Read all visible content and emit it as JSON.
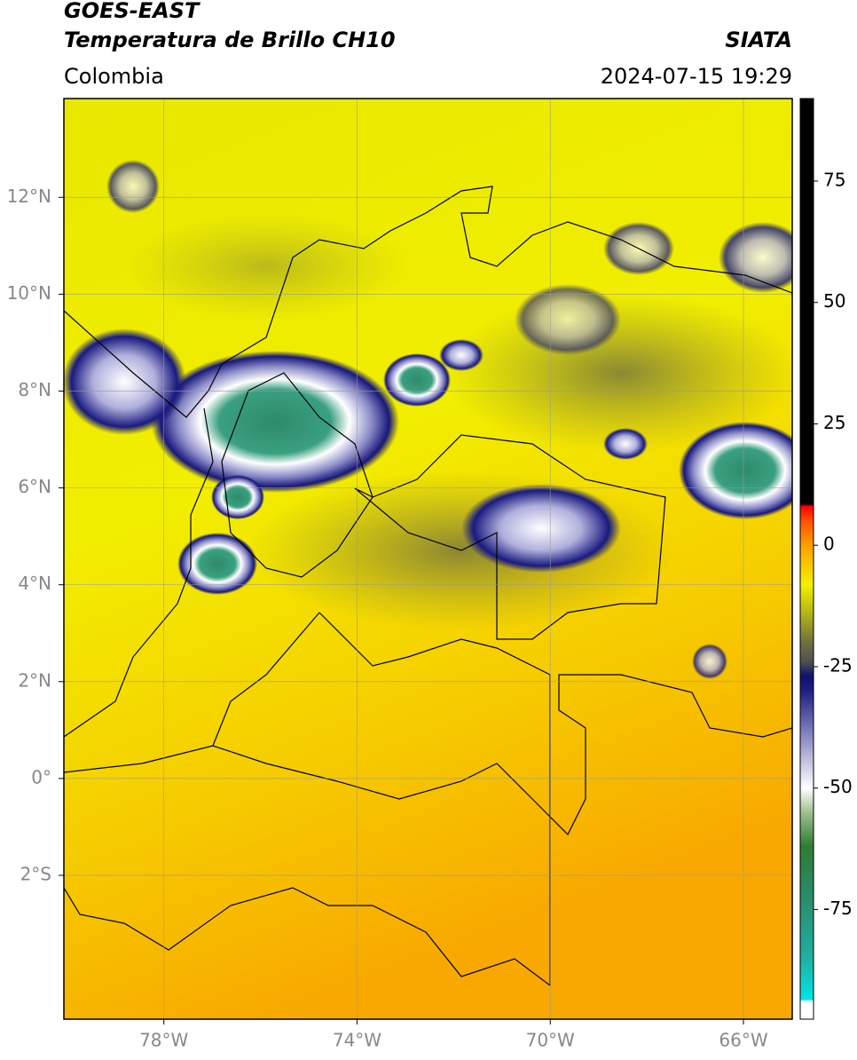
{
  "header": {
    "title_line1": "GOES-EAST",
    "title_line2": "Temperatura de Brillo CH10",
    "region": "Colombia",
    "source": "SIATA",
    "datetime": "2024-07-15 19:29"
  },
  "map": {
    "xlim": [
      -80.07,
      -64.99
    ],
    "ylim": [
      -4.97,
      14.04
    ],
    "xticks": [
      {
        "value": -78,
        "label": "78°W"
      },
      {
        "value": -74,
        "label": "74°W"
      },
      {
        "value": -70,
        "label": "70°W"
      },
      {
        "value": -66,
        "label": "66°W"
      }
    ],
    "yticks": [
      {
        "value": 12,
        "label": "12°N"
      },
      {
        "value": 10,
        "label": "10°N"
      },
      {
        "value": 8,
        "label": "8°N"
      },
      {
        "value": 6,
        "label": "6°N"
      },
      {
        "value": 4,
        "label": "4°N"
      },
      {
        "value": 2,
        "label": "2°N"
      },
      {
        "value": 0,
        "label": "0°"
      },
      {
        "value": -2,
        "label": "2°S"
      }
    ],
    "grid": true
  },
  "colorbar": {
    "lim": [
      -97.6,
      92
    ],
    "ticks": [
      75,
      50,
      25,
      0,
      -25,
      -50,
      -75
    ],
    "stops": [
      {
        "value": -97.6,
        "color": "#ffffff"
      },
      {
        "value": -94,
        "color": "#ffffff"
      },
      {
        "value": -93.5,
        "color": "#00e5e5"
      },
      {
        "value": -85,
        "color": "#20b0a0"
      },
      {
        "value": -72,
        "color": "#2a8a6a"
      },
      {
        "value": -62,
        "color": "#2e7d32"
      },
      {
        "value": -55,
        "color": "#a0c090"
      },
      {
        "value": -50,
        "color": "#ffffff"
      },
      {
        "value": -40,
        "color": "#9090c8"
      },
      {
        "value": -30,
        "color": "#202080"
      },
      {
        "value": -27,
        "color": "#101070"
      },
      {
        "value": -24,
        "color": "#505050"
      },
      {
        "value": -20,
        "color": "#707040"
      },
      {
        "value": -13,
        "color": "#c0c010"
      },
      {
        "value": -8,
        "color": "#f4f000"
      },
      {
        "value": 0,
        "color": "#ffa000"
      },
      {
        "value": 5,
        "color": "#ff5000"
      },
      {
        "value": 8,
        "color": "#ff0000"
      },
      {
        "value": 8.5,
        "color": "#000000"
      },
      {
        "value": 92,
        "color": "#000000"
      }
    ]
  }
}
